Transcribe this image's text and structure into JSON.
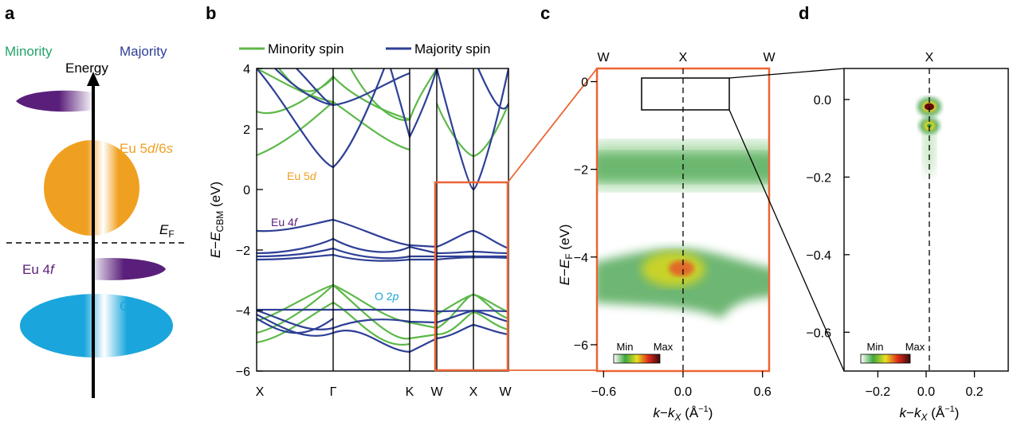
{
  "colors": {
    "minority": "#5cb848",
    "majority": "#2e3f96",
    "eu5d": "#f0a020",
    "eu4f": "#5a1f7a",
    "o2p": "#1aa6dc",
    "box": "#ec6433"
  },
  "panel_a": {
    "letter": "a",
    "minority_label": "Minority",
    "majority_label": "Majority",
    "energy_label": "Energy",
    "eu5d_label_main": "Eu 5",
    "eu5d_label_d": "d",
    "eu5d_label_sep": "/6",
    "eu5d_label_s": "s",
    "fermi_E": "E",
    "fermi_sub": "F",
    "eu4f_main": "Eu 4",
    "eu4f_f": "f",
    "o2p_main": "O 2",
    "o2p_p": "p"
  },
  "panel_b": {
    "letter": "b",
    "legend_minority": "Minority spin",
    "legend_majority": "Majority spin",
    "ylabel_E": "E",
    "ylabel_minus": "−",
    "ylabel_E2": "E",
    "ylabel_sub": "CBM",
    "ylabel_unit": " (eV)",
    "yticks": [
      "4",
      "2",
      "0",
      "−2",
      "−4",
      "−6"
    ],
    "kpoints": [
      "X",
      "Γ",
      "K",
      "W",
      "X",
      "W"
    ],
    "ann_eu5d_main": "Eu 5",
    "ann_eu5d_d": "d",
    "ann_eu4f_main": "Eu 4",
    "ann_eu4f_f": "f",
    "ann_o2p_main": "O 2",
    "ann_o2p_p": "p"
  },
  "panel_c": {
    "letter": "c",
    "top_labels": [
      "W",
      "X",
      "W"
    ],
    "ylabel_E": "E",
    "ylabel_minus": "−",
    "ylabel_E2": "E",
    "ylabel_sub": "F",
    "ylabel_unit": " (eV)",
    "yticks": [
      "0",
      "−2",
      "−4",
      "−6"
    ],
    "xticks": [
      "−0.6",
      "0.0",
      "0.6"
    ],
    "xlabel_k": "k",
    "xlabel_minus": "−",
    "xlabel_k2": "k",
    "xlabel_sub": "X",
    "xlabel_unit": " (Å",
    "xlabel_exp": "−1",
    "xlabel_close": ")",
    "cbar_min": "Min",
    "cbar_max": "Max"
  },
  "panel_d": {
    "letter": "d",
    "top_label": "X",
    "yticks": [
      "0.0",
      "−0.2",
      "−0.4",
      "−0.6"
    ],
    "xticks": [
      "−0.2",
      "0.0",
      "0.2"
    ],
    "xlabel_k": "k",
    "xlabel_minus": "−",
    "xlabel_k2": "k",
    "xlabel_sub": "X",
    "xlabel_unit": " (Å",
    "xlabel_exp": "−1",
    "xlabel_close": ")",
    "cbar_min": "Min",
    "cbar_max": "Max"
  },
  "chart_data": [
    {
      "type": "line",
      "panel": "b",
      "ylim": [
        -6,
        4
      ],
      "yticks": [
        4,
        2,
        0,
        -2,
        -4,
        -6
      ],
      "kpath": [
        "X",
        "Γ",
        "K",
        "W",
        "X",
        "W"
      ],
      "series": [
        {
          "name": "Minority spin"
        },
        {
          "name": "Majority spin"
        }
      ]
    },
    {
      "type": "heatmap",
      "panel": "c",
      "xlim": [
        -0.65,
        0.65
      ],
      "ylim": [
        -6.6,
        0.3
      ],
      "xticks": [
        -0.6,
        0.0,
        0.6
      ],
      "yticks": [
        0,
        -2,
        -4,
        -6
      ]
    },
    {
      "type": "heatmap",
      "panel": "d",
      "xlim": [
        -0.34,
        0.34
      ],
      "ylim": [
        -0.7,
        0.08
      ],
      "xticks": [
        -0.2,
        0.0,
        0.2
      ],
      "yticks": [
        0.0,
        -0.2,
        -0.4,
        -0.6
      ]
    }
  ]
}
